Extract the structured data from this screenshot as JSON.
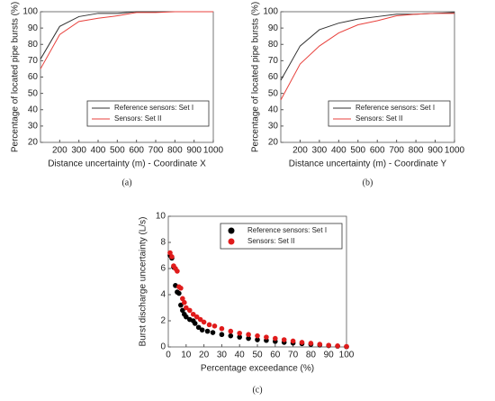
{
  "chart_data": [
    {
      "type": "line",
      "caption": "(a)",
      "xlabel": "Distance uncertainty (m) - Coordinate X",
      "ylabel": "Percentage of located pipe bursts (%)",
      "x": [
        100,
        200,
        300,
        400,
        500,
        600,
        700,
        800,
        900,
        1000
      ],
      "series": [
        {
          "name": "Reference sensors: Set I",
          "color": "#333333",
          "values": [
            71,
            91,
            97,
            99,
            99,
            100,
            100,
            100,
            100,
            100
          ]
        },
        {
          "name": "Sensors: Set II",
          "color": "#e8413c",
          "values": [
            65,
            86,
            94,
            96,
            97.5,
            99.5,
            99.5,
            100,
            100,
            100
          ]
        }
      ],
      "xlim": [
        100,
        1000
      ],
      "xticks": [
        200,
        300,
        400,
        500,
        600,
        700,
        800,
        900,
        1000
      ],
      "ylim": [
        20,
        100
      ],
      "yticks": [
        20,
        30,
        40,
        50,
        60,
        70,
        80,
        90,
        100
      ],
      "legend": "lower right"
    },
    {
      "type": "line",
      "caption": "(b)",
      "xlabel": "Distance uncertainty (m) - Coordinate Y",
      "ylabel": "Percentage of located pipe bursts (%)",
      "x": [
        100,
        200,
        300,
        400,
        500,
        600,
        700,
        800,
        900,
        1000
      ],
      "series": [
        {
          "name": "Reference sensors: Set I",
          "color": "#333333",
          "values": [
            58,
            79,
            89,
            93,
            95.5,
            97,
            98.5,
            98.5,
            99,
            99.5
          ]
        },
        {
          "name": "Sensors: Set II",
          "color": "#e8413c",
          "values": [
            46,
            68,
            79,
            87,
            92,
            94.5,
            97.5,
            98.5,
            99,
            99
          ]
        }
      ],
      "xlim": [
        100,
        1000
      ],
      "xticks": [
        200,
        300,
        400,
        500,
        600,
        700,
        800,
        900,
        1000
      ],
      "ylim": [
        20,
        100
      ],
      "yticks": [
        20,
        30,
        40,
        50,
        60,
        70,
        80,
        90,
        100
      ],
      "legend": "lower right"
    },
    {
      "type": "scatter",
      "caption": "(c)",
      "xlabel": "Percentage exceedance (%)",
      "ylabel": "Burst discharge uncertainty (L/s)",
      "series": [
        {
          "name": "Reference sensors: Set I",
          "color": "#000000",
          "x": [
            1,
            2,
            3,
            4,
            5,
            6,
            7,
            8,
            9,
            10,
            12,
            14,
            15,
            17,
            19,
            22,
            25,
            30,
            35,
            40,
            45,
            50,
            55,
            60,
            65,
            70,
            75,
            80,
            85,
            90,
            95,
            100
          ],
          "values": [
            7.0,
            6.8,
            6.1,
            4.7,
            4.2,
            4.1,
            3.2,
            2.8,
            2.5,
            2.3,
            2.1,
            2.0,
            1.8,
            1.5,
            1.3,
            1.2,
            1.1,
            0.95,
            0.85,
            0.75,
            0.65,
            0.55,
            0.5,
            0.42,
            0.35,
            0.3,
            0.25,
            0.2,
            0.15,
            0.1,
            0.06,
            0.02
          ]
        },
        {
          "name": "Sensors: Set II",
          "color": "#e01b1b",
          "x": [
            1,
            2,
            3,
            4,
            5,
            6,
            7,
            8,
            9,
            10,
            12,
            14,
            16,
            18,
            20,
            23,
            26,
            30,
            35,
            40,
            45,
            50,
            55,
            60,
            65,
            70,
            75,
            80,
            85,
            90,
            95,
            100
          ],
          "values": [
            7.2,
            6.9,
            6.2,
            6.0,
            5.8,
            4.6,
            4.5,
            3.7,
            3.4,
            3.0,
            2.8,
            2.5,
            2.3,
            2.1,
            1.9,
            1.7,
            1.6,
            1.4,
            1.2,
            1.05,
            0.95,
            0.85,
            0.75,
            0.65,
            0.55,
            0.45,
            0.35,
            0.28,
            0.2,
            0.13,
            0.08,
            0.03
          ]
        }
      ],
      "xlim": [
        0,
        100
      ],
      "xticks": [
        0,
        10,
        20,
        30,
        40,
        50,
        60,
        70,
        80,
        90,
        100
      ],
      "ylim": [
        0,
        10
      ],
      "yticks": [
        0,
        2,
        4,
        6,
        8,
        10
      ],
      "legend": "upper right"
    }
  ]
}
